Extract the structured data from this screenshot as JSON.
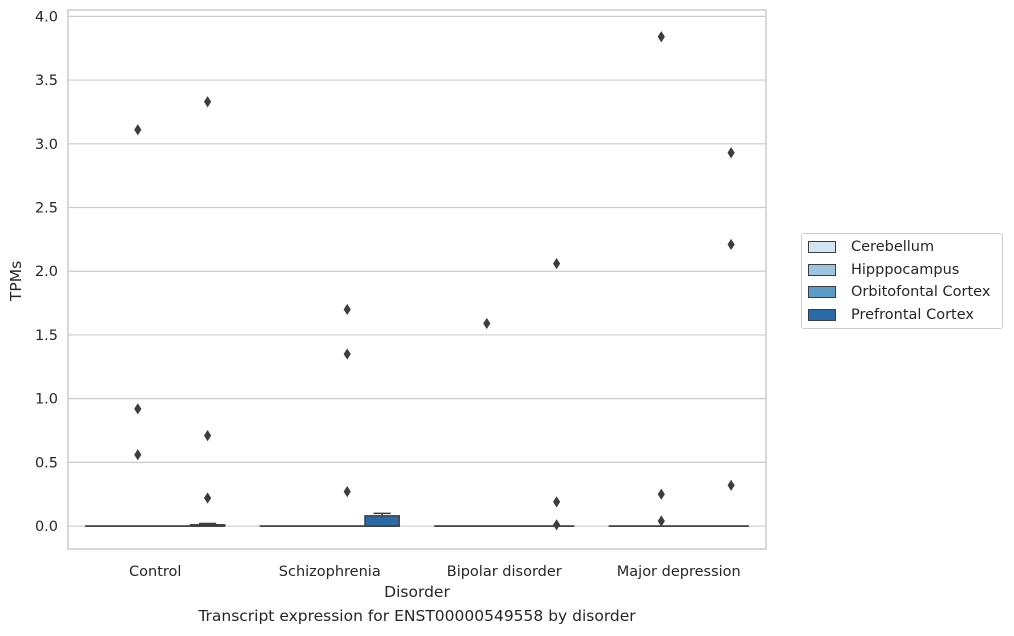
{
  "chart_data": {
    "type": "box",
    "title": "",
    "caption": "Transcript expression for ENST00000549558 by disorder",
    "xlabel": "Disorder",
    "ylabel": "TPMs",
    "ylim": [
      -0.18,
      4.05
    ],
    "yticks": [
      "0.0",
      "0.5",
      "1.0",
      "1.5",
      "2.0",
      "2.5",
      "3.0",
      "3.5",
      "4.0"
    ],
    "grid": "horizontal",
    "legend_position": "right",
    "categories": [
      "Control",
      "Schizophrenia",
      "Bipolar disorder",
      "Major depression"
    ],
    "series": [
      {
        "name": "Cerebellum",
        "color": "#d3e4f3",
        "boxes": [
          {
            "q1": 0,
            "median": 0,
            "q3": 0,
            "whisker_low": 0,
            "whisker_high": 0,
            "outliers": []
          },
          {
            "q1": 0,
            "median": 0,
            "q3": 0,
            "whisker_low": 0,
            "whisker_high": 0,
            "outliers": []
          },
          {
            "q1": 0,
            "median": 0,
            "q3": 0,
            "whisker_low": 0,
            "whisker_high": 0,
            "outliers": []
          },
          {
            "q1": 0,
            "median": 0,
            "q3": 0,
            "whisker_low": 0,
            "whisker_high": 0,
            "outliers": []
          }
        ]
      },
      {
        "name": "Hipppocampus",
        "color": "#9dc5e0",
        "boxes": [
          {
            "q1": 0,
            "median": 0,
            "q3": 0,
            "whisker_low": 0,
            "whisker_high": 0,
            "outliers": [
              3.11,
              0.92,
              0.56
            ]
          },
          {
            "q1": 0,
            "median": 0,
            "q3": 0,
            "whisker_low": 0,
            "whisker_high": 0,
            "outliers": []
          },
          {
            "q1": 0,
            "median": 0,
            "q3": 0,
            "whisker_low": 0,
            "whisker_high": 0,
            "outliers": [
              1.59
            ]
          },
          {
            "q1": 0,
            "median": 0,
            "q3": 0,
            "whisker_low": 0,
            "whisker_high": 0,
            "outliers": [
              3.84,
              0.25,
              0.04
            ]
          }
        ]
      },
      {
        "name": "Orbitofontal Cortex",
        "color": "#5a9bc8",
        "boxes": [
          {
            "q1": 0,
            "median": 0,
            "q3": 0,
            "whisker_low": 0,
            "whisker_high": 0,
            "outliers": []
          },
          {
            "q1": 0,
            "median": 0,
            "q3": 0,
            "whisker_low": 0,
            "whisker_high": 0,
            "outliers": [
              1.7,
              1.35,
              0.27
            ]
          },
          {
            "q1": 0,
            "median": 0,
            "q3": 0,
            "whisker_low": 0,
            "whisker_high": 0,
            "outliers": []
          },
          {
            "q1": 0,
            "median": 0,
            "q3": 0,
            "whisker_low": 0,
            "whisker_high": 0,
            "outliers": []
          }
        ]
      },
      {
        "name": "Prefrontal Cortex",
        "color": "#2b6aa9",
        "boxes": [
          {
            "q1": 0,
            "median": 0,
            "q3": 0.01,
            "whisker_low": 0,
            "whisker_high": 0.02,
            "outliers": [
              3.33,
              0.71,
              0.22
            ]
          },
          {
            "q1": 0,
            "median": 0,
            "q3": 0.08,
            "whisker_low": 0,
            "whisker_high": 0.1,
            "outliers": []
          },
          {
            "q1": 0,
            "median": 0,
            "q3": 0,
            "whisker_low": 0,
            "whisker_high": 0,
            "outliers": [
              2.06,
              0.19,
              0.01
            ]
          },
          {
            "q1": 0,
            "median": 0,
            "q3": 0,
            "whisker_low": 0,
            "whisker_high": 0,
            "outliers": [
              2.93,
              2.21,
              0.32
            ]
          }
        ]
      }
    ]
  }
}
